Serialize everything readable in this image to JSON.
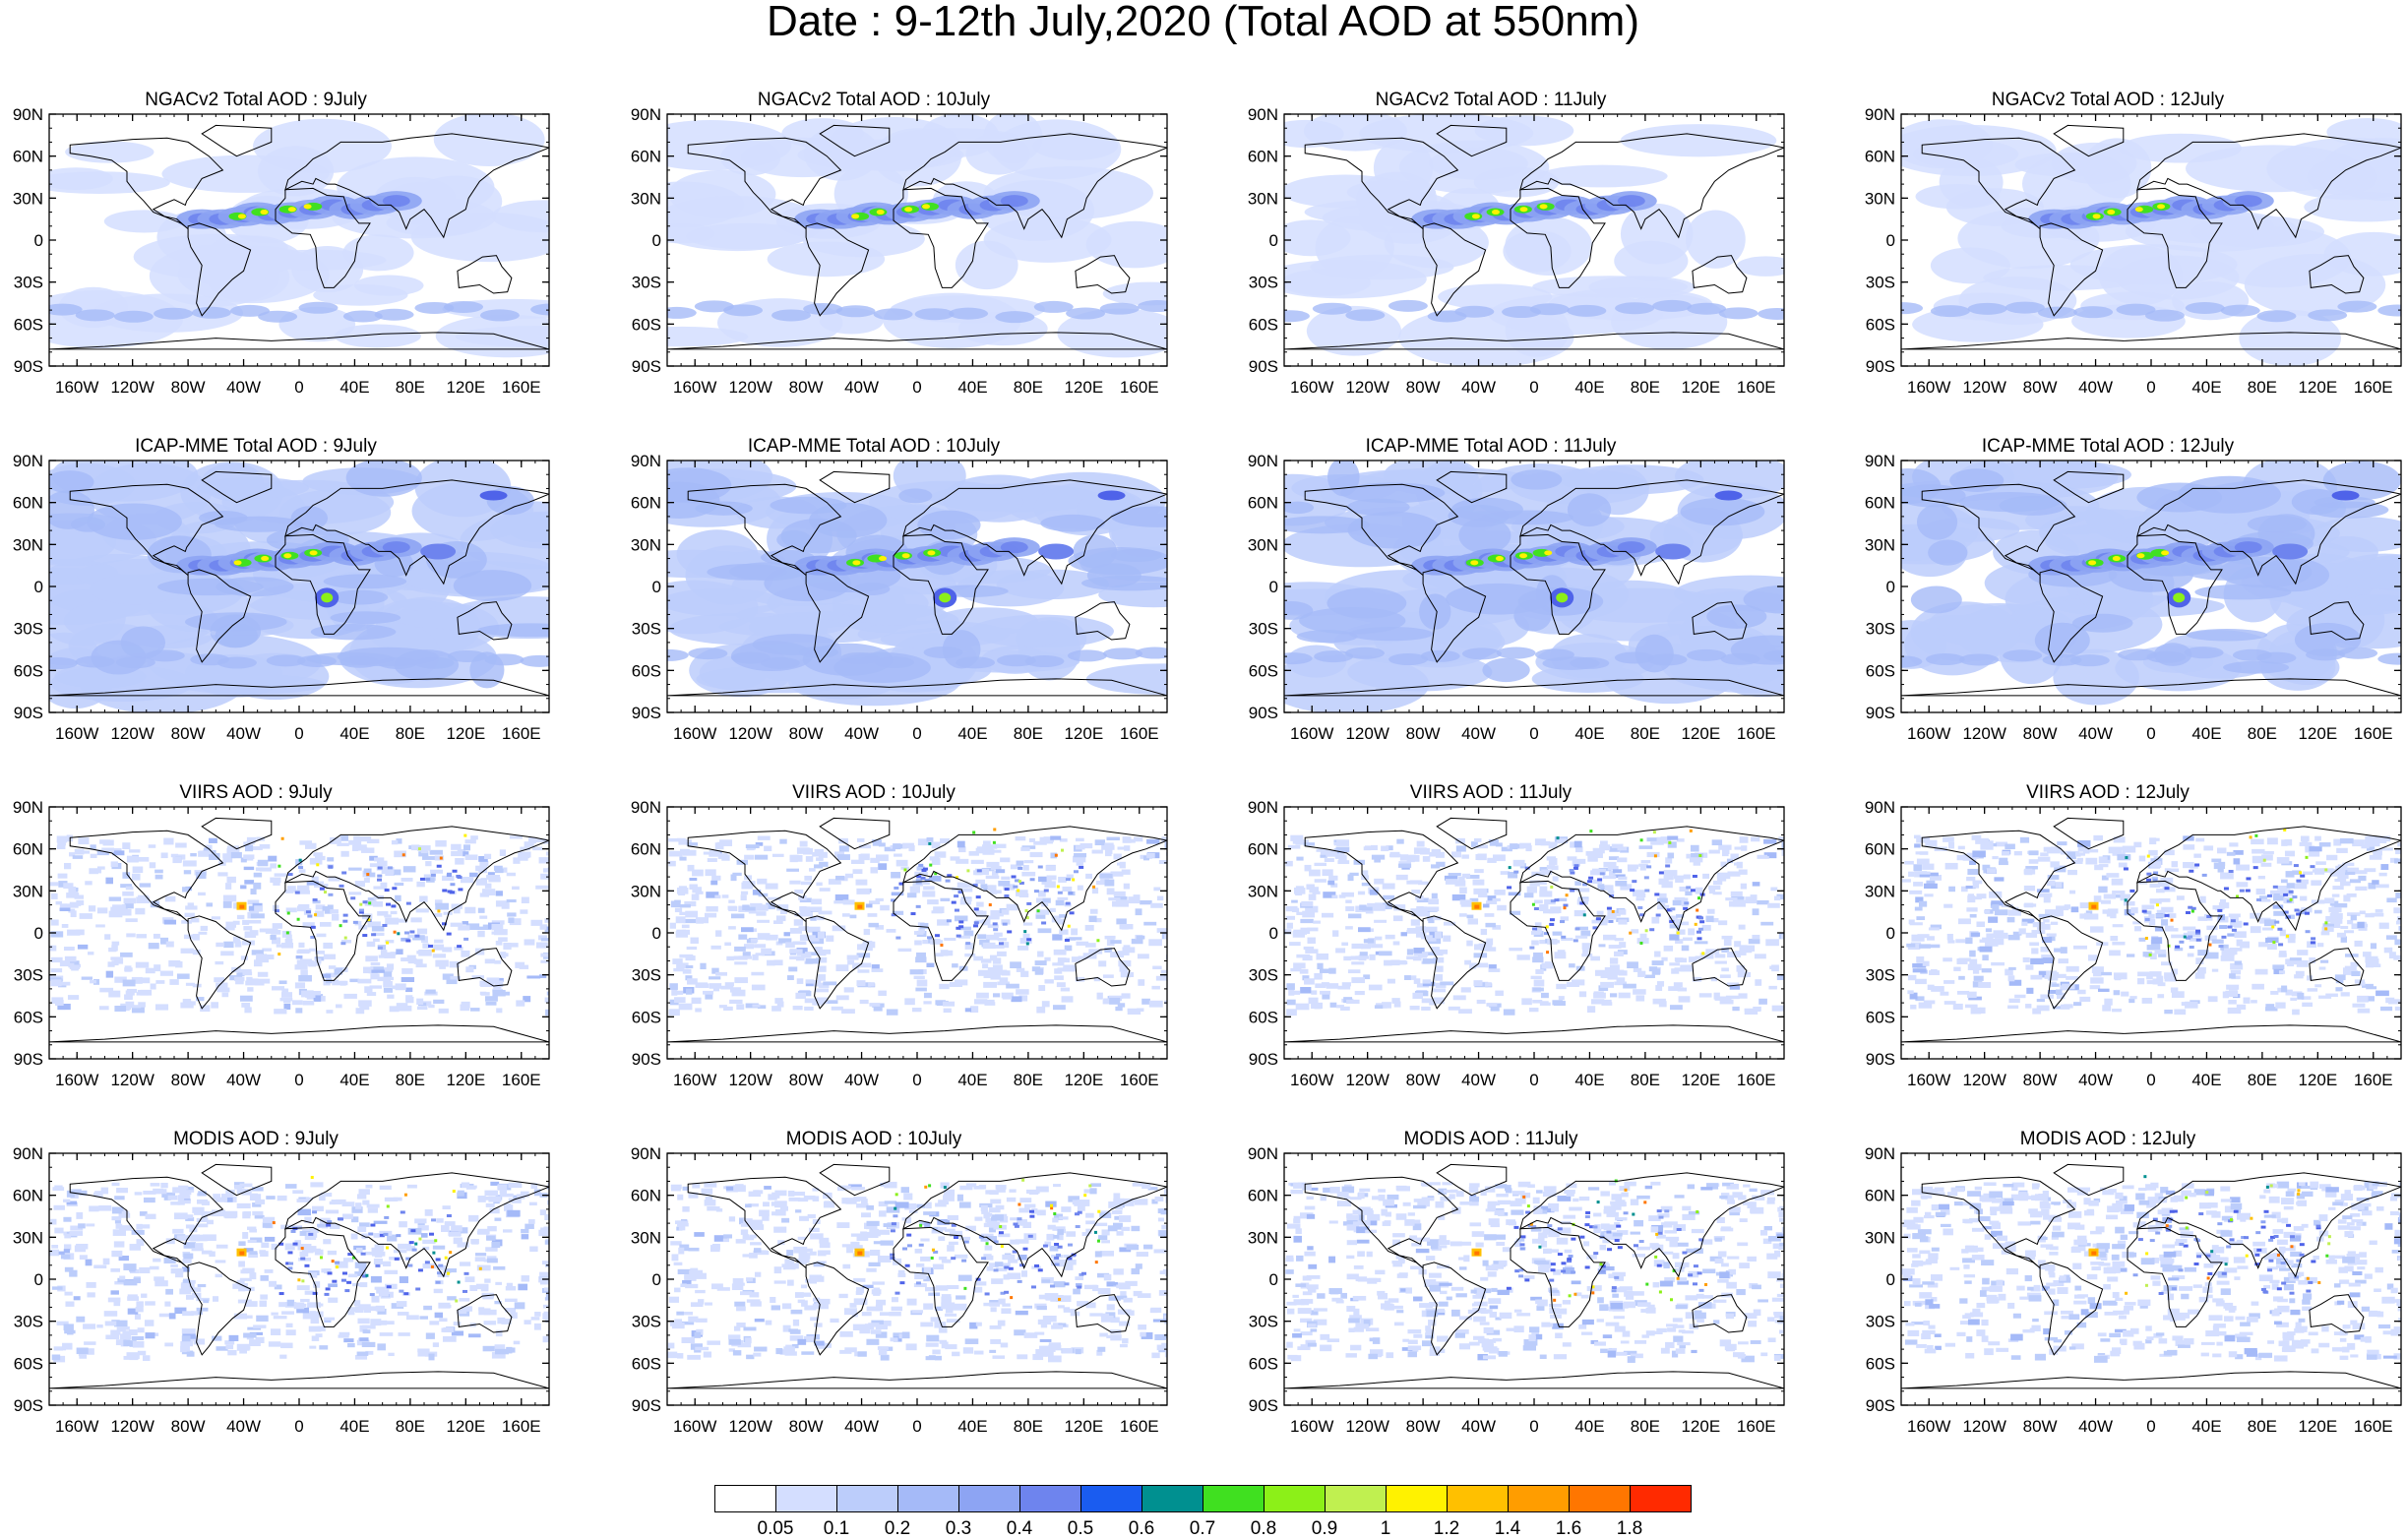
{
  "title": "Date : 9-12th July,2020 (Total AOD at 550nm)",
  "panels": [
    {
      "title": "NGACv2 Total AOD : 9July",
      "row": 0,
      "col": 0,
      "style": "model"
    },
    {
      "title": "NGACv2 Total AOD : 10July",
      "row": 0,
      "col": 1,
      "style": "model"
    },
    {
      "title": "NGACv2 Total AOD : 11July",
      "row": 0,
      "col": 2,
      "style": "model"
    },
    {
      "title": "NGACv2 Total AOD : 12July",
      "row": 0,
      "col": 3,
      "style": "model"
    },
    {
      "title": "ICAP-MME Total AOD : 9July",
      "row": 1,
      "col": 0,
      "style": "icap"
    },
    {
      "title": "ICAP-MME Total AOD : 10July",
      "row": 1,
      "col": 1,
      "style": "icap"
    },
    {
      "title": "ICAP-MME Total AOD : 11July",
      "row": 1,
      "col": 2,
      "style": "icap"
    },
    {
      "title": "ICAP-MME Total AOD : 12July",
      "row": 1,
      "col": 3,
      "style": "icap"
    },
    {
      "title": "VIIRS AOD : 9July",
      "row": 2,
      "col": 0,
      "style": "sat"
    },
    {
      "title": "VIIRS AOD : 10July",
      "row": 2,
      "col": 1,
      "style": "sat"
    },
    {
      "title": "VIIRS AOD : 11July",
      "row": 2,
      "col": 2,
      "style": "sat"
    },
    {
      "title": "VIIRS AOD : 12July",
      "row": 2,
      "col": 3,
      "style": "sat"
    },
    {
      "title": "MODIS AOD : 9July",
      "row": 3,
      "col": 0,
      "style": "sat"
    },
    {
      "title": "MODIS AOD : 10July",
      "row": 3,
      "col": 1,
      "style": "sat"
    },
    {
      "title": "MODIS AOD : 11July",
      "row": 3,
      "col": 2,
      "style": "sat"
    },
    {
      "title": "MODIS AOD : 12July",
      "row": 3,
      "col": 3,
      "style": "sat"
    }
  ],
  "lat_labels": [
    "90N",
    "60N",
    "30N",
    "0",
    "30S",
    "60S",
    "90S"
  ],
  "lon_labels": [
    "160W",
    "120W",
    "80W",
    "40W",
    "0",
    "40E",
    "80E",
    "120E",
    "160E"
  ],
  "colorbar": {
    "labels": [
      "0.05",
      "0.1",
      "0.2",
      "0.3",
      "0.4",
      "0.5",
      "0.6",
      "0.7",
      "0.8",
      "0.9",
      "1",
      "1.2",
      "1.4",
      "1.6",
      "1.8"
    ],
    "colors": [
      "#ffffff",
      "#d4deff",
      "#bccdfb",
      "#a5baf8",
      "#8da4f3",
      "#6e84ee",
      "#4f63e9",
      "#1a5cf0",
      "#009090",
      "#40e020",
      "#8cf018",
      "#c0f050",
      "#fff200",
      "#ffc000",
      "#ff9d00",
      "#ff7600",
      "#ff2a00"
    ]
  }
}
